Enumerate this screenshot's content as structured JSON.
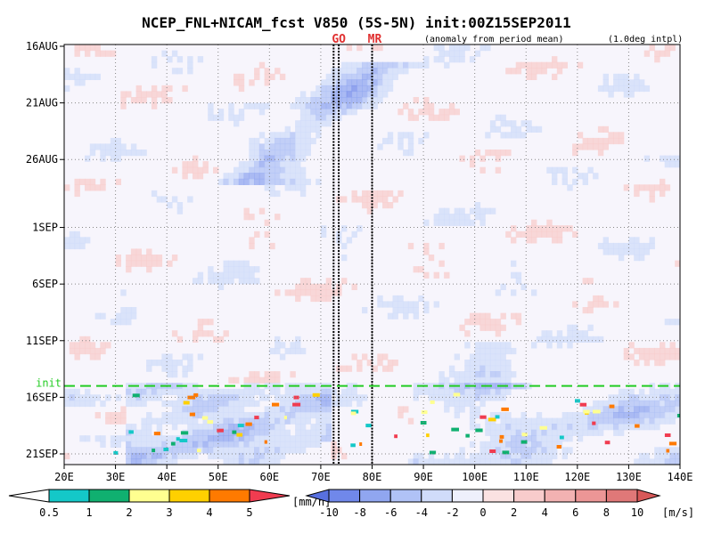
{
  "chart_data": {
    "type": "heatmap",
    "title": "NCEP_FNL+NICAM_fcst V850 (5S-5N) init:00Z15SEP2011",
    "subtitle_left": "(anomaly from period mean)",
    "subtitle_right": "(1.0deg intpl)",
    "x_axis": {
      "range": [
        20,
        140
      ],
      "ticks": [
        20,
        30,
        40,
        50,
        60,
        70,
        80,
        90,
        100,
        110,
        120,
        130,
        140
      ],
      "tick_labels": [
        "20E",
        "30E",
        "40E",
        "50E",
        "60E",
        "70E",
        "80E",
        "90E",
        "100E",
        "110E",
        "120E",
        "130E",
        "140E"
      ]
    },
    "y_axis": {
      "range_days": [
        0,
        36
      ],
      "ticks_days": [
        0,
        5,
        10,
        16,
        21,
        26,
        31,
        36
      ],
      "tick_labels": [
        "16AUG",
        "21AUG",
        "26AUG",
        "1SEP",
        "6SEP",
        "11SEP",
        "16SEP",
        "21SEP"
      ],
      "reversed": true
    },
    "grid": true,
    "markers": [
      {
        "label": "GO",
        "x": [
          72.5,
          73.5
        ],
        "color": "#e03030"
      },
      {
        "label": "MR",
        "x": [
          80
        ],
        "color": "#e03030"
      }
    ],
    "init_line": {
      "label": "init",
      "day": 30,
      "color": "#22cc22"
    },
    "precip_legend": {
      "unit": "[mm/h]",
      "levels": [
        "0.5",
        "1",
        "2",
        "3",
        "4",
        "5"
      ],
      "colors": [
        "#ffffff",
        "#14c8c8",
        "#10b070",
        "#ffff90",
        "#ffd000",
        "#ff7a00",
        "#f03c50"
      ]
    },
    "wind_legend": {
      "unit": "[m/s]",
      "levels": [
        "-10",
        "-8",
        "-6",
        "-4",
        "-2",
        "0",
        "2",
        "4",
        "6",
        "8",
        "10"
      ],
      "colors": [
        "#5870e0",
        "#7088ea",
        "#90a6f0",
        "#b0c2f6",
        "#d0dcfa",
        "#eef0fc",
        "#fbe2e2",
        "#f8cccc",
        "#f2b2b2",
        "#ec9696",
        "#e07878",
        "#d85858"
      ]
    }
  }
}
